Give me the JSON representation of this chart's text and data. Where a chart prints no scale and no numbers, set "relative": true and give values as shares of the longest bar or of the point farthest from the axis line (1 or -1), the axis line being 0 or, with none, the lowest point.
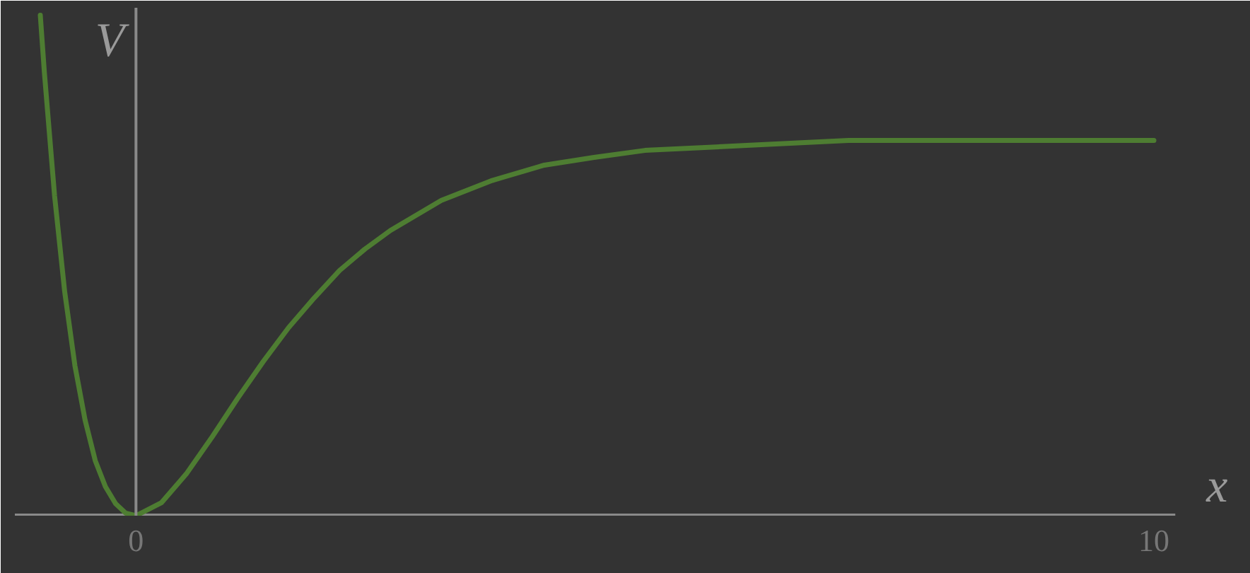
{
  "chart_data": {
    "type": "line",
    "xlabel": "x",
    "ylabel": "V",
    "relative": true,
    "x": [
      -0.94,
      -0.9,
      -0.8,
      -0.7,
      -0.6,
      -0.5,
      -0.4,
      -0.3,
      -0.2,
      -0.1,
      0,
      0.25,
      0.5,
      0.75,
      1,
      1.25,
      1.5,
      1.75,
      2,
      2.25,
      2.5,
      3,
      3.5,
      4,
      4.5,
      5,
      6,
      7,
      8,
      9,
      10
    ],
    "series": [
      {
        "color": "#4e7d32",
        "values": [
          1.0,
          0.886,
          0.64,
          0.447,
          0.3,
          0.191,
          0.11,
          0.058,
          0.024,
          0.005,
          0,
          0.026,
          0.085,
          0.158,
          0.235,
          0.308,
          0.376,
          0.435,
          0.49,
          0.533,
          0.57,
          0.63,
          0.67,
          0.7,
          0.716,
          0.73,
          0.74,
          0.75,
          0.75,
          0.75,
          0.75
        ]
      }
    ],
    "xlim": [
      -1.19,
      10.21
    ],
    "xticks": [
      0,
      10
    ]
  }
}
